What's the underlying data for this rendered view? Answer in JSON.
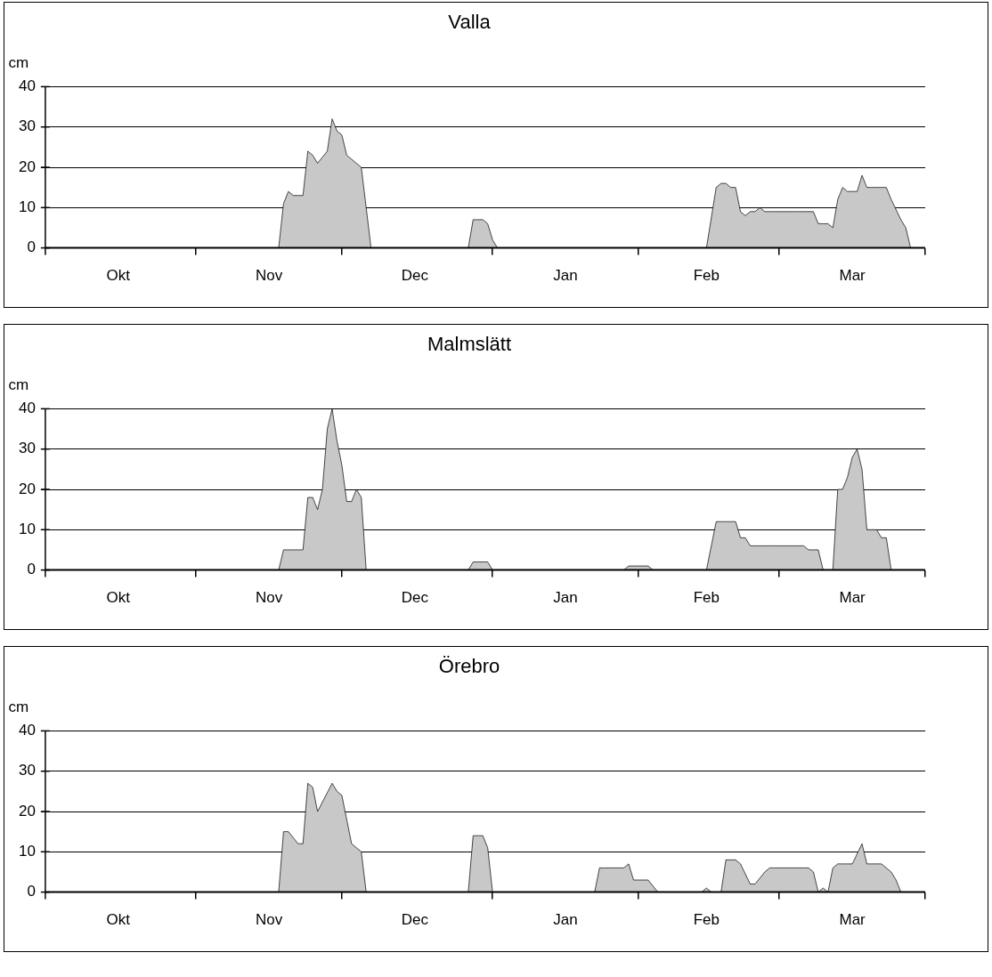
{
  "chart_data": [
    {
      "type": "area",
      "title": "Valla",
      "ylabel": "cm",
      "color": "#c8c8c8",
      "grid": "y",
      "ylim": [
        0,
        40
      ],
      "yticks": [
        0,
        10,
        20,
        30,
        40
      ],
      "categories": [
        null,
        null,
        null,
        null,
        null,
        null,
        null,
        null,
        null,
        null,
        null,
        null,
        null,
        null,
        null,
        "Okt",
        null,
        null,
        null,
        null,
        null,
        null,
        null,
        null,
        null,
        null,
        null,
        null,
        null,
        null,
        null,
        null,
        null,
        null,
        null,
        null,
        null,
        null,
        null,
        null,
        null,
        null,
        null,
        null,
        null,
        null,
        "Nov",
        null,
        null,
        null,
        null,
        null,
        null,
        null,
        null,
        null,
        null,
        null,
        null,
        null,
        null,
        null,
        null,
        null,
        null,
        null,
        null,
        null,
        null,
        null,
        null,
        null,
        null,
        null,
        null,
        null,
        "Dec",
        null,
        null,
        null,
        null,
        null,
        null,
        null,
        null,
        null,
        null,
        null,
        null,
        null,
        null,
        null,
        null,
        null,
        null,
        null,
        null,
        null,
        null,
        null,
        null,
        null,
        null,
        null,
        null,
        null,
        null,
        "Jan",
        null,
        null,
        null,
        null,
        null,
        null,
        null,
        null,
        null,
        null,
        null,
        null,
        null,
        null,
        null,
        null,
        null,
        null,
        null,
        null,
        null,
        null,
        null,
        null,
        null,
        null,
        null,
        null,
        "Feb",
        null,
        null,
        null,
        null,
        null,
        null,
        null,
        null,
        null,
        null,
        null,
        null,
        null,
        null,
        null,
        null,
        null,
        null,
        null,
        null,
        null,
        null,
        null,
        null,
        null,
        null,
        null,
        null,
        null,
        "Mar",
        null,
        null,
        null,
        null,
        null,
        null,
        null,
        null,
        null,
        null,
        null,
        null,
        null,
        null,
        null
      ],
      "values": [
        0,
        0,
        0,
        0,
        0,
        0,
        0,
        0,
        0,
        0,
        0,
        0,
        0,
        0,
        0,
        0,
        0,
        0,
        0,
        0,
        0,
        0,
        0,
        0,
        0,
        0,
        0,
        0,
        0,
        0,
        0,
        0,
        0,
        0,
        0,
        0,
        0,
        0,
        0,
        0,
        0,
        0,
        0,
        0,
        0,
        0,
        0,
        0,
        0,
        11,
        14,
        13,
        13,
        13,
        24,
        23,
        21,
        null,
        24,
        32,
        29,
        28,
        23,
        null,
        21,
        20,
        10,
        0,
        0,
        0,
        0,
        0,
        0,
        0,
        0,
        0,
        0,
        0,
        0,
        0,
        0,
        0,
        0,
        0,
        0,
        0,
        0,
        0,
        7,
        7,
        7,
        6,
        2,
        0,
        0,
        0,
        0,
        0,
        0,
        0,
        0,
        0,
        0,
        0,
        0,
        0,
        0,
        0,
        0,
        0,
        0,
        0,
        0,
        0,
        0,
        0,
        0,
        0,
        0,
        0,
        0,
        0,
        0,
        0,
        0,
        0,
        0,
        0,
        0,
        0,
        0,
        0,
        0,
        0,
        0,
        0,
        0,
        null,
        15,
        16,
        16,
        15,
        15,
        9,
        8,
        9,
        9,
        10,
        9,
        9,
        9,
        9,
        9,
        9,
        9,
        9,
        9,
        9,
        9,
        6,
        6,
        6,
        5,
        12,
        15,
        14,
        14,
        14,
        18,
        15,
        15,
        15,
        15,
        15,
        12,
        null,
        7,
        5,
        0,
        0,
        0,
        0
      ]
    },
    {
      "type": "area",
      "title": "Malmslätt",
      "ylabel": "cm",
      "color": "#c8c8c8",
      "grid": "y",
      "ylim": [
        0,
        40
      ],
      "yticks": [
        0,
        10,
        20,
        30,
        40
      ],
      "categories": [
        null,
        null,
        null,
        null,
        null,
        null,
        null,
        null,
        null,
        null,
        null,
        null,
        null,
        null,
        null,
        "Okt",
        null,
        null,
        null,
        null,
        null,
        null,
        null,
        null,
        null,
        null,
        null,
        null,
        null,
        null,
        null,
        null,
        null,
        null,
        null,
        null,
        null,
        null,
        null,
        null,
        null,
        null,
        null,
        null,
        null,
        null,
        "Nov",
        null,
        null,
        null,
        null,
        null,
        null,
        null,
        null,
        null,
        null,
        null,
        null,
        null,
        null,
        null,
        null,
        null,
        null,
        null,
        null,
        null,
        null,
        null,
        null,
        null,
        null,
        null,
        null,
        null,
        "Dec",
        null,
        null,
        null,
        null,
        null,
        null,
        null,
        null,
        null,
        null,
        null,
        null,
        null,
        null,
        null,
        null,
        null,
        null,
        null,
        null,
        null,
        null,
        null,
        null,
        null,
        null,
        null,
        null,
        null,
        null,
        "Jan",
        null,
        null,
        null,
        null,
        null,
        null,
        null,
        null,
        null,
        null,
        null,
        null,
        null,
        null,
        null,
        null,
        null,
        null,
        null,
        null,
        null,
        null,
        null,
        null,
        null,
        null,
        null,
        null,
        "Feb",
        null,
        null,
        null,
        null,
        null,
        null,
        null,
        null,
        null,
        null,
        null,
        null,
        null,
        null,
        null,
        null,
        null,
        null,
        null,
        null,
        null,
        null,
        null,
        null,
        null,
        null,
        null,
        null,
        null,
        "Mar",
        null,
        null,
        null,
        null,
        null,
        null,
        null,
        null,
        null,
        null,
        null,
        null,
        null,
        null,
        null
      ],
      "values": [
        0,
        0,
        0,
        0,
        0,
        0,
        0,
        0,
        0,
        0,
        0,
        0,
        0,
        0,
        0,
        0,
        0,
        0,
        0,
        0,
        0,
        0,
        0,
        0,
        0,
        0,
        0,
        0,
        0,
        0,
        0,
        0,
        0,
        0,
        0,
        0,
        0,
        0,
        0,
        0,
        0,
        0,
        0,
        0,
        0,
        0,
        0,
        0,
        0,
        5,
        5,
        5,
        5,
        5,
        18,
        18,
        15,
        20,
        35,
        40,
        32,
        26,
        17,
        17,
        20,
        18,
        0,
        0,
        0,
        0,
        0,
        0,
        0,
        0,
        0,
        0,
        0,
        0,
        0,
        0,
        0,
        0,
        0,
        0,
        0,
        0,
        0,
        0,
        2,
        2,
        2,
        2,
        0,
        0,
        0,
        0,
        0,
        0,
        0,
        0,
        0,
        0,
        0,
        0,
        0,
        0,
        0,
        0,
        0,
        0,
        0,
        0,
        0,
        0,
        0,
        0,
        0,
        0,
        0,
        0,
        1,
        1,
        1,
        1,
        1,
        0,
        0,
        0,
        0,
        0,
        0,
        0,
        0,
        0,
        0,
        0,
        0,
        null,
        12,
        12,
        12,
        12,
        12,
        8,
        8,
        6,
        6,
        6,
        6,
        6,
        6,
        6,
        6,
        6,
        6,
        6,
        6,
        5,
        5,
        5,
        0,
        0,
        0,
        20,
        20,
        23,
        28,
        30,
        25,
        10,
        10,
        10,
        8,
        8,
        0,
        0,
        0,
        0,
        0,
        0,
        0,
        0
      ]
    },
    {
      "type": "area",
      "title": "Örebro",
      "ylabel": "cm",
      "color": "#c8c8c8",
      "grid": "y",
      "ylim": [
        0,
        40
      ],
      "yticks": [
        0,
        10,
        20,
        30,
        40
      ],
      "categories": [
        null,
        null,
        null,
        null,
        null,
        null,
        null,
        null,
        null,
        null,
        null,
        null,
        null,
        null,
        null,
        "Okt",
        null,
        null,
        null,
        null,
        null,
        null,
        null,
        null,
        null,
        null,
        null,
        null,
        null,
        null,
        null,
        null,
        null,
        null,
        null,
        null,
        null,
        null,
        null,
        null,
        null,
        null,
        null,
        null,
        null,
        null,
        "Nov",
        null,
        null,
        null,
        null,
        null,
        null,
        null,
        null,
        null,
        null,
        null,
        null,
        null,
        null,
        null,
        null,
        null,
        null,
        null,
        null,
        null,
        null,
        null,
        null,
        null,
        null,
        null,
        null,
        null,
        "Dec",
        null,
        null,
        null,
        null,
        null,
        null,
        null,
        null,
        null,
        null,
        null,
        null,
        null,
        null,
        null,
        null,
        null,
        null,
        null,
        null,
        null,
        null,
        null,
        null,
        null,
        null,
        null,
        null,
        null,
        null,
        "Jan",
        null,
        null,
        null,
        null,
        null,
        null,
        null,
        null,
        null,
        null,
        null,
        null,
        null,
        null,
        null,
        null,
        null,
        null,
        null,
        null,
        null,
        null,
        null,
        null,
        null,
        null,
        null,
        null,
        "Feb",
        null,
        null,
        null,
        null,
        null,
        null,
        null,
        null,
        null,
        null,
        null,
        null,
        null,
        null,
        null,
        null,
        null,
        null,
        null,
        null,
        null,
        null,
        null,
        null,
        null,
        null,
        null,
        null,
        null,
        "Mar",
        null,
        null,
        null,
        null,
        null,
        null,
        null,
        null,
        null,
        null,
        null,
        null,
        null,
        null,
        null
      ],
      "values": [
        0,
        0,
        0,
        0,
        0,
        0,
        0,
        0,
        0,
        0,
        0,
        0,
        0,
        0,
        0,
        0,
        0,
        0,
        0,
        0,
        0,
        0,
        0,
        0,
        0,
        0,
        0,
        0,
        0,
        0,
        0,
        0,
        0,
        0,
        0,
        0,
        0,
        0,
        0,
        0,
        0,
        0,
        0,
        0,
        0,
        0,
        0,
        0,
        0,
        15,
        15,
        null,
        12,
        12,
        27,
        26,
        20,
        null,
        null,
        27,
        25,
        24,
        null,
        12,
        null,
        10,
        0,
        0,
        0,
        0,
        0,
        0,
        0,
        0,
        0,
        0,
        0,
        0,
        0,
        0,
        0,
        0,
        0,
        0,
        0,
        0,
        0,
        0,
        14,
        14,
        14,
        11,
        0,
        0,
        0,
        0,
        0,
        0,
        0,
        0,
        0,
        0,
        0,
        0,
        0,
        0,
        0,
        0,
        0,
        0,
        0,
        0,
        0,
        0,
        6,
        6,
        6,
        6,
        6,
        6,
        7,
        3,
        3,
        3,
        3,
        null,
        0,
        0,
        0,
        0,
        0,
        0,
        0,
        0,
        0,
        0,
        1,
        0,
        0,
        0,
        8,
        8,
        8,
        7,
        null,
        2,
        2,
        null,
        5,
        6,
        6,
        6,
        6,
        6,
        6,
        6,
        6,
        6,
        5,
        0,
        1,
        0,
        6,
        7,
        7,
        7,
        7,
        null,
        12,
        7,
        7,
        7,
        7,
        null,
        5,
        3,
        0,
        0,
        0,
        0,
        0,
        0
      ]
    }
  ]
}
